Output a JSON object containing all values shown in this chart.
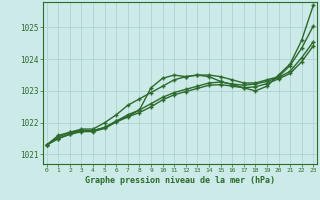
{
  "background_color": "#cceae7",
  "plot_bg_color": "#cceae7",
  "grid_color": "#aacccc",
  "line_color": "#2d6a2d",
  "title": "Graphe pression niveau de la mer (hPa)",
  "xlim": [
    -0.3,
    23.3
  ],
  "ylim": [
    1020.7,
    1025.8
  ],
  "yticks": [
    1021,
    1022,
    1023,
    1024,
    1025
  ],
  "xticks": [
    0,
    1,
    2,
    3,
    4,
    5,
    6,
    7,
    8,
    9,
    10,
    11,
    12,
    13,
    14,
    15,
    16,
    17,
    18,
    19,
    20,
    21,
    22,
    23
  ],
  "series": [
    [
      1021.3,
      1021.6,
      1021.7,
      1021.75,
      1021.75,
      1021.85,
      1022.05,
      1022.2,
      1022.4,
      1023.1,
      1023.4,
      1023.5,
      1023.45,
      1023.5,
      1023.45,
      1023.3,
      1023.2,
      1023.1,
      1023.0,
      1023.15,
      1023.5,
      1023.85,
      1024.6,
      1025.7
    ],
    [
      1021.3,
      1021.55,
      1021.7,
      1021.8,
      1021.8,
      1022.0,
      1022.25,
      1022.55,
      1022.75,
      1022.95,
      1023.15,
      1023.35,
      1023.45,
      1023.5,
      1023.5,
      1023.45,
      1023.35,
      1023.25,
      1023.25,
      1023.35,
      1023.45,
      1023.8,
      1024.35,
      1025.05
    ],
    [
      1021.3,
      1021.5,
      1021.65,
      1021.75,
      1021.75,
      1021.85,
      1022.05,
      1022.25,
      1022.4,
      1022.6,
      1022.8,
      1022.95,
      1023.05,
      1023.15,
      1023.25,
      1023.28,
      1023.22,
      1023.18,
      1023.22,
      1023.3,
      1023.42,
      1023.62,
      1024.05,
      1024.55
    ],
    [
      1021.3,
      1021.5,
      1021.63,
      1021.72,
      1021.72,
      1021.82,
      1022.02,
      1022.18,
      1022.32,
      1022.5,
      1022.72,
      1022.88,
      1022.98,
      1023.08,
      1023.18,
      1023.2,
      1023.15,
      1023.1,
      1023.13,
      1023.23,
      1023.38,
      1023.55,
      1023.92,
      1024.42
    ]
  ]
}
